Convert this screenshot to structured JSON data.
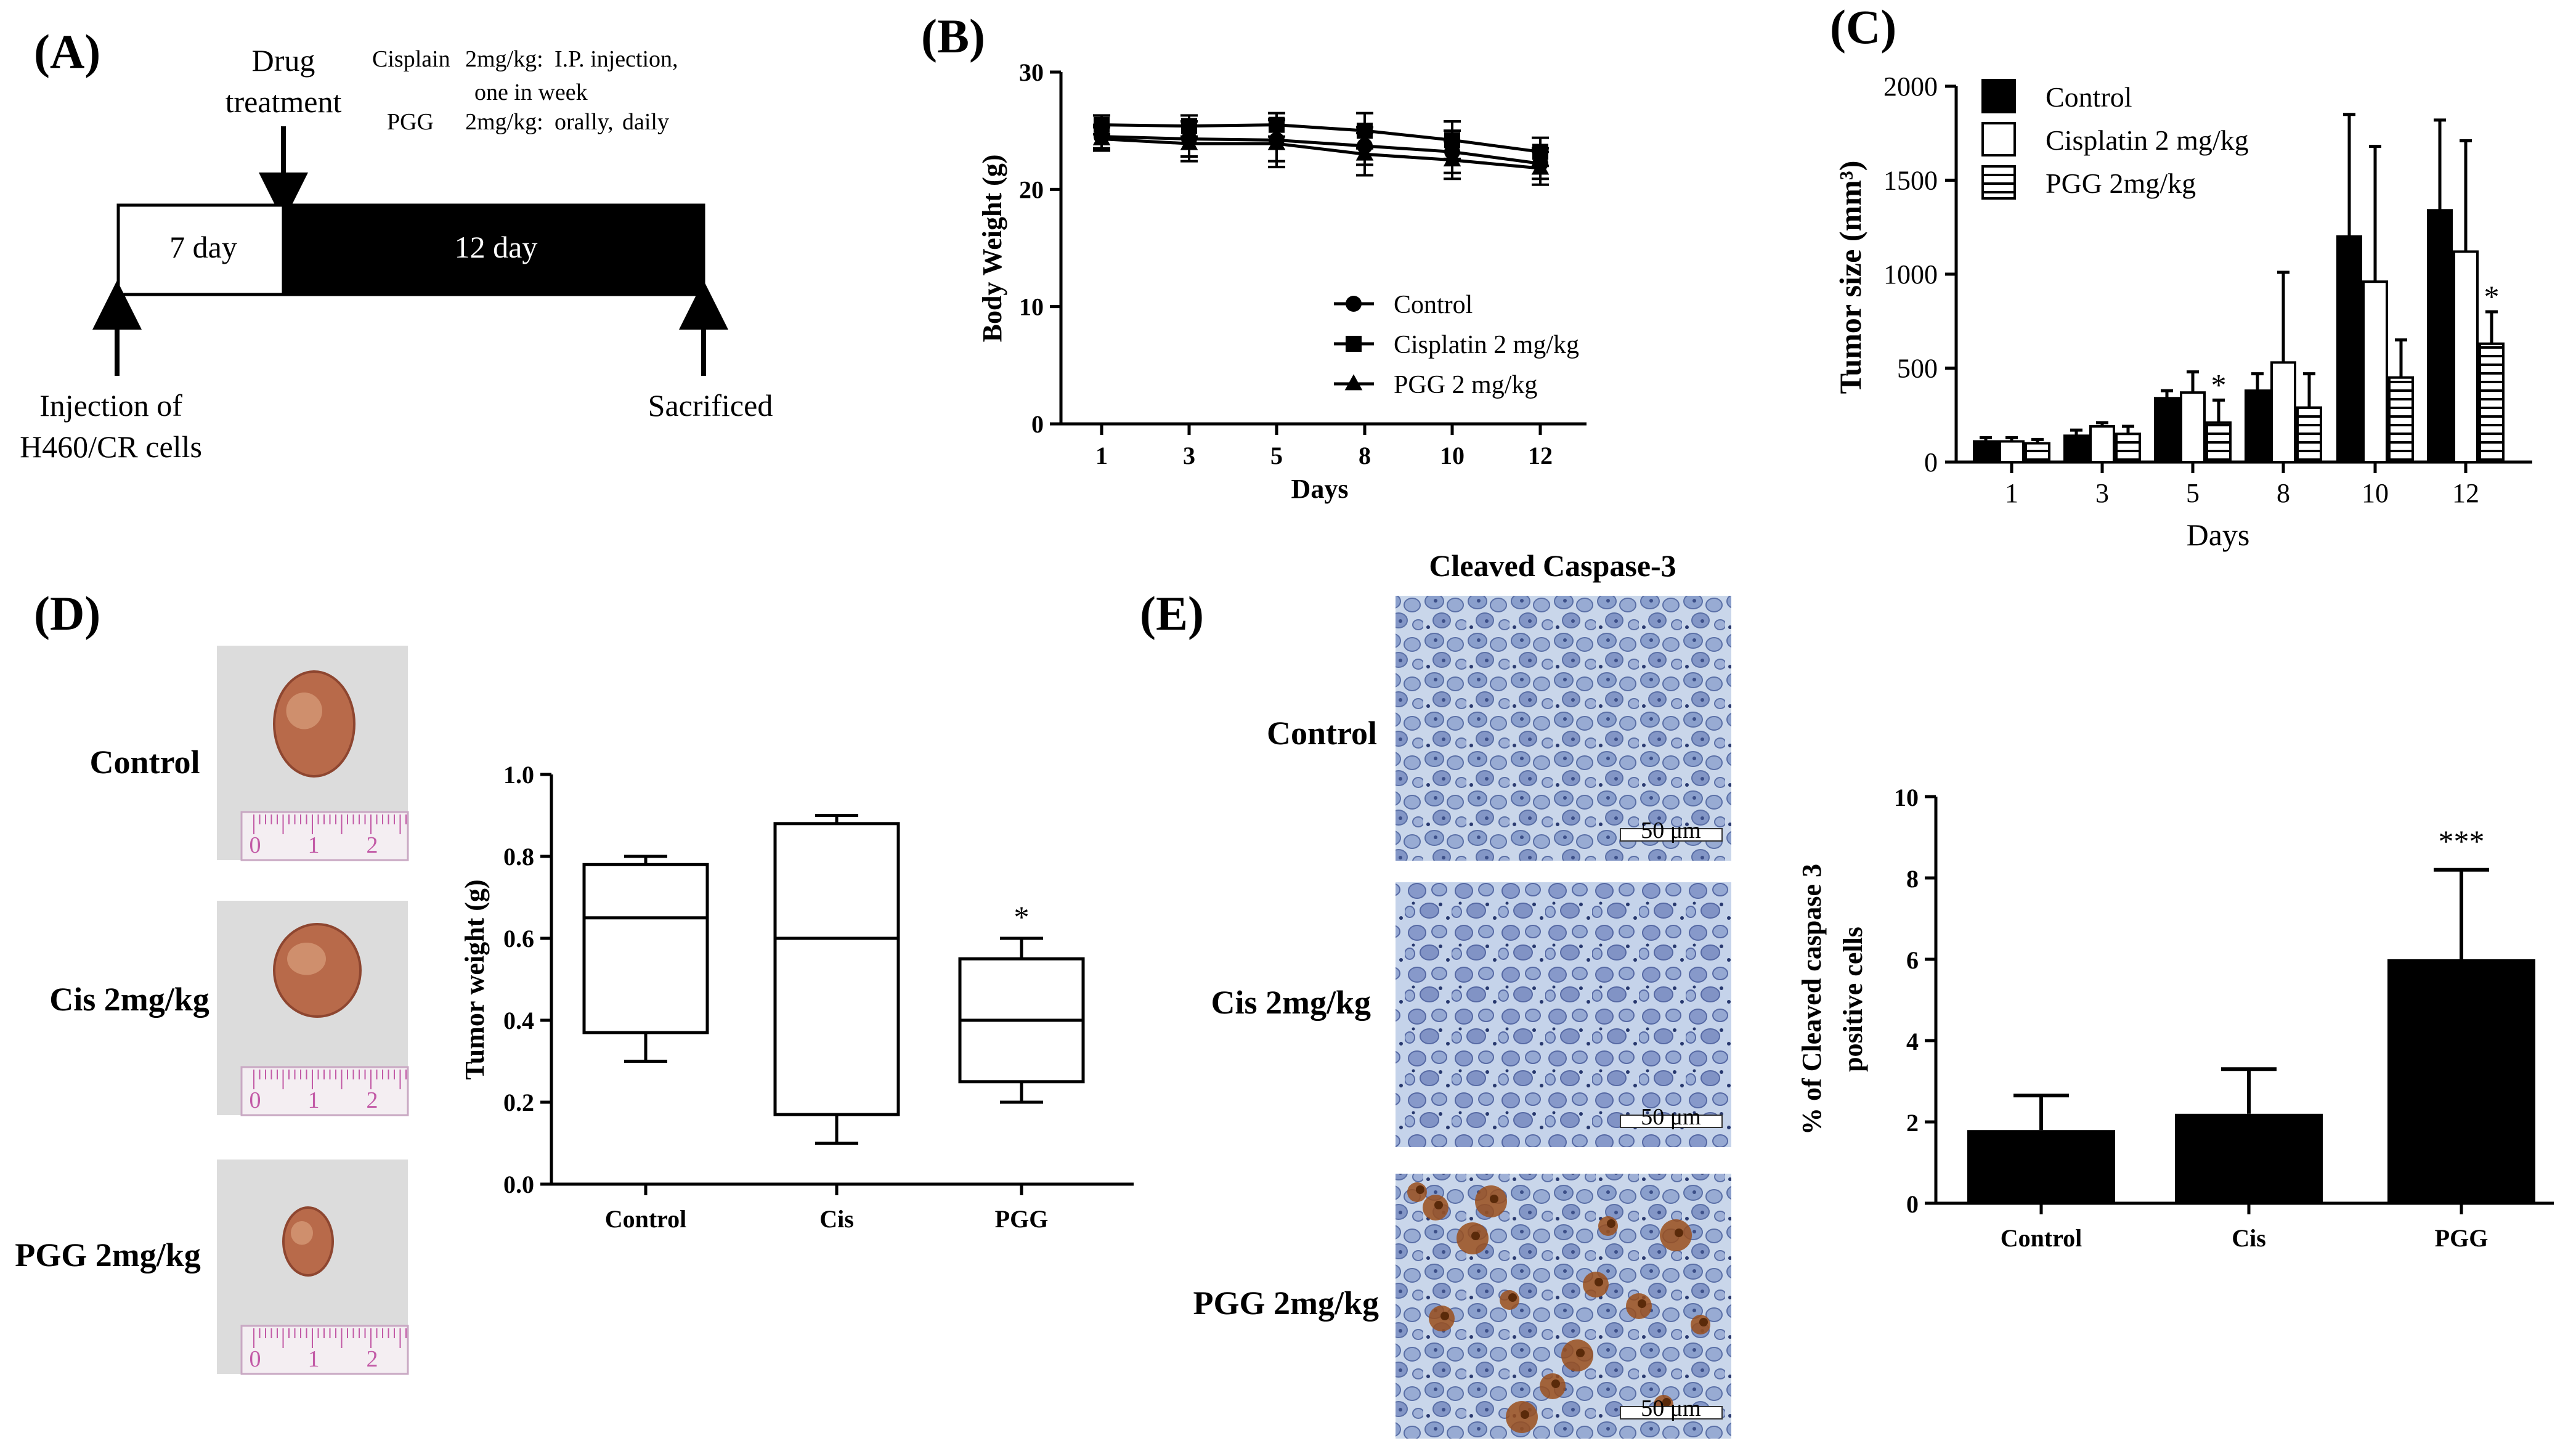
{
  "panels": {
    "A": {
      "label": "(A)",
      "drug_treatment": [
        "Drug",
        "treatment"
      ],
      "cisplatin_line": {
        "name": "Cisplain",
        "dose": "2mg/kg:",
        "route": "I.P. injection,"
      },
      "cisplatin_line2": "one in week",
      "pgg_line": {
        "name": "PGG",
        "dose": "2mg/kg:",
        "route": "orally,",
        "freq": "daily"
      },
      "box_pre": "7 day",
      "box_treat": "12 day",
      "injection": [
        "Injection of",
        "H460/CR cells"
      ],
      "sacrificed": "Sacrificed",
      "colors": {
        "pre_fill": "#ffffff",
        "treat_fill": "#000000"
      }
    },
    "B": {
      "label": "(B)"
    },
    "C": {
      "label": "(C)"
    },
    "D": {
      "label": "(D)",
      "photo_labels": [
        "Control",
        "Cis 2mg/kg",
        "PGG 2mg/kg"
      ],
      "ruler_digits": [
        "0",
        "1",
        "2"
      ]
    },
    "E": {
      "label": "(E)",
      "title": "Cleaved Caspase-3",
      "row_labels": [
        "Control",
        "Cis 2mg/kg",
        "PGG 2mg/kg"
      ],
      "scale_text": "50 μm"
    }
  },
  "chart_data": [
    {
      "id": "B",
      "type": "line",
      "title": "",
      "xlabel": "Days",
      "ylabel": "Body Weight (g)",
      "x": [
        1,
        3,
        5,
        8,
        10,
        12
      ],
      "ylim": [
        0,
        30
      ],
      "yticks": [
        0,
        10,
        20,
        30
      ],
      "legend_position": "lower-right",
      "series": [
        {
          "name": "Control",
          "marker": "circle",
          "values": [
            24.5,
            24.3,
            24.2,
            23.7,
            23.2,
            22.2
          ],
          "errors": [
            1.0,
            1.5,
            1.8,
            1.6,
            1.8,
            1.3
          ]
        },
        {
          "name": "Cisplatin 2 mg/kg",
          "marker": "square",
          "values": [
            25.5,
            25.4,
            25.5,
            25.0,
            24.2,
            23.2
          ],
          "errors": [
            0.8,
            0.9,
            1.0,
            1.5,
            1.6,
            1.2
          ]
        },
        {
          "name": "PGG 2 mg/kg",
          "marker": "triangle",
          "values": [
            24.3,
            23.9,
            23.9,
            23.0,
            22.5,
            21.8
          ],
          "errors": [
            1.0,
            1.5,
            2.0,
            1.8,
            1.6,
            1.4
          ]
        }
      ]
    },
    {
      "id": "C",
      "type": "bar",
      "title": "",
      "xlabel": "Days",
      "ylabel": "Tumor size  (mm³)",
      "categories": [
        "1",
        "3",
        "5",
        "8",
        "10",
        "12"
      ],
      "ylim": [
        0,
        2000
      ],
      "yticks": [
        0,
        500,
        1000,
        1500,
        2000
      ],
      "legend_position": "top-left",
      "series": [
        {
          "name": "Control",
          "fill": "solid",
          "values": [
            110,
            140,
            340,
            380,
            1200,
            1340
          ],
          "errors": [
            20,
            30,
            40,
            90,
            650,
            480
          ]
        },
        {
          "name": "Cisplatin 2 mg/kg",
          "fill": "open",
          "values": [
            110,
            190,
            370,
            530,
            960,
            1120
          ],
          "errors": [
            20,
            20,
            110,
            480,
            720,
            590
          ]
        },
        {
          "name": "PGG 2mg/kg",
          "fill": "hatched",
          "values": [
            100,
            150,
            210,
            290,
            450,
            630
          ],
          "errors": [
            20,
            40,
            120,
            180,
            200,
            170
          ]
        }
      ],
      "annotations": [
        {
          "category": "5",
          "series": "PGG 2mg/kg",
          "text": "*"
        },
        {
          "category": "12",
          "series": "PGG 2mg/kg",
          "text": "*"
        }
      ]
    },
    {
      "id": "D",
      "type": "box",
      "title": "",
      "xlabel": "",
      "ylabel": "Tumor weight  (g)",
      "categories": [
        "Control",
        "Cis",
        "PGG"
      ],
      "ylim": [
        0,
        1.0
      ],
      "yticks": [
        "0.0",
        "0.2",
        "0.4",
        "0.6",
        "0.8",
        "1.0"
      ],
      "boxes": [
        {
          "min": 0.3,
          "q1": 0.37,
          "median": 0.65,
          "q3": 0.78,
          "max": 0.8
        },
        {
          "min": 0.1,
          "q1": 0.17,
          "median": 0.6,
          "q3": 0.88,
          "max": 0.9
        },
        {
          "min": 0.2,
          "q1": 0.25,
          "median": 0.4,
          "q3": 0.55,
          "max": 0.6
        }
      ],
      "annotations": [
        {
          "category": "PGG",
          "text": "*"
        }
      ]
    },
    {
      "id": "E",
      "type": "bar",
      "title": "",
      "xlabel": "",
      "ylabel": [
        "% of Cleaved caspase 3",
        "positive cells"
      ],
      "categories": [
        "Control",
        "Cis",
        "PGG"
      ],
      "ylim": [
        0,
        10
      ],
      "yticks": [
        0,
        2,
        4,
        6,
        8,
        10
      ],
      "values": [
        1.8,
        2.2,
        6.0
      ],
      "errors": [
        0.85,
        1.1,
        2.2
      ],
      "annotations": [
        {
          "category": "PGG",
          "text": "***"
        }
      ]
    }
  ]
}
